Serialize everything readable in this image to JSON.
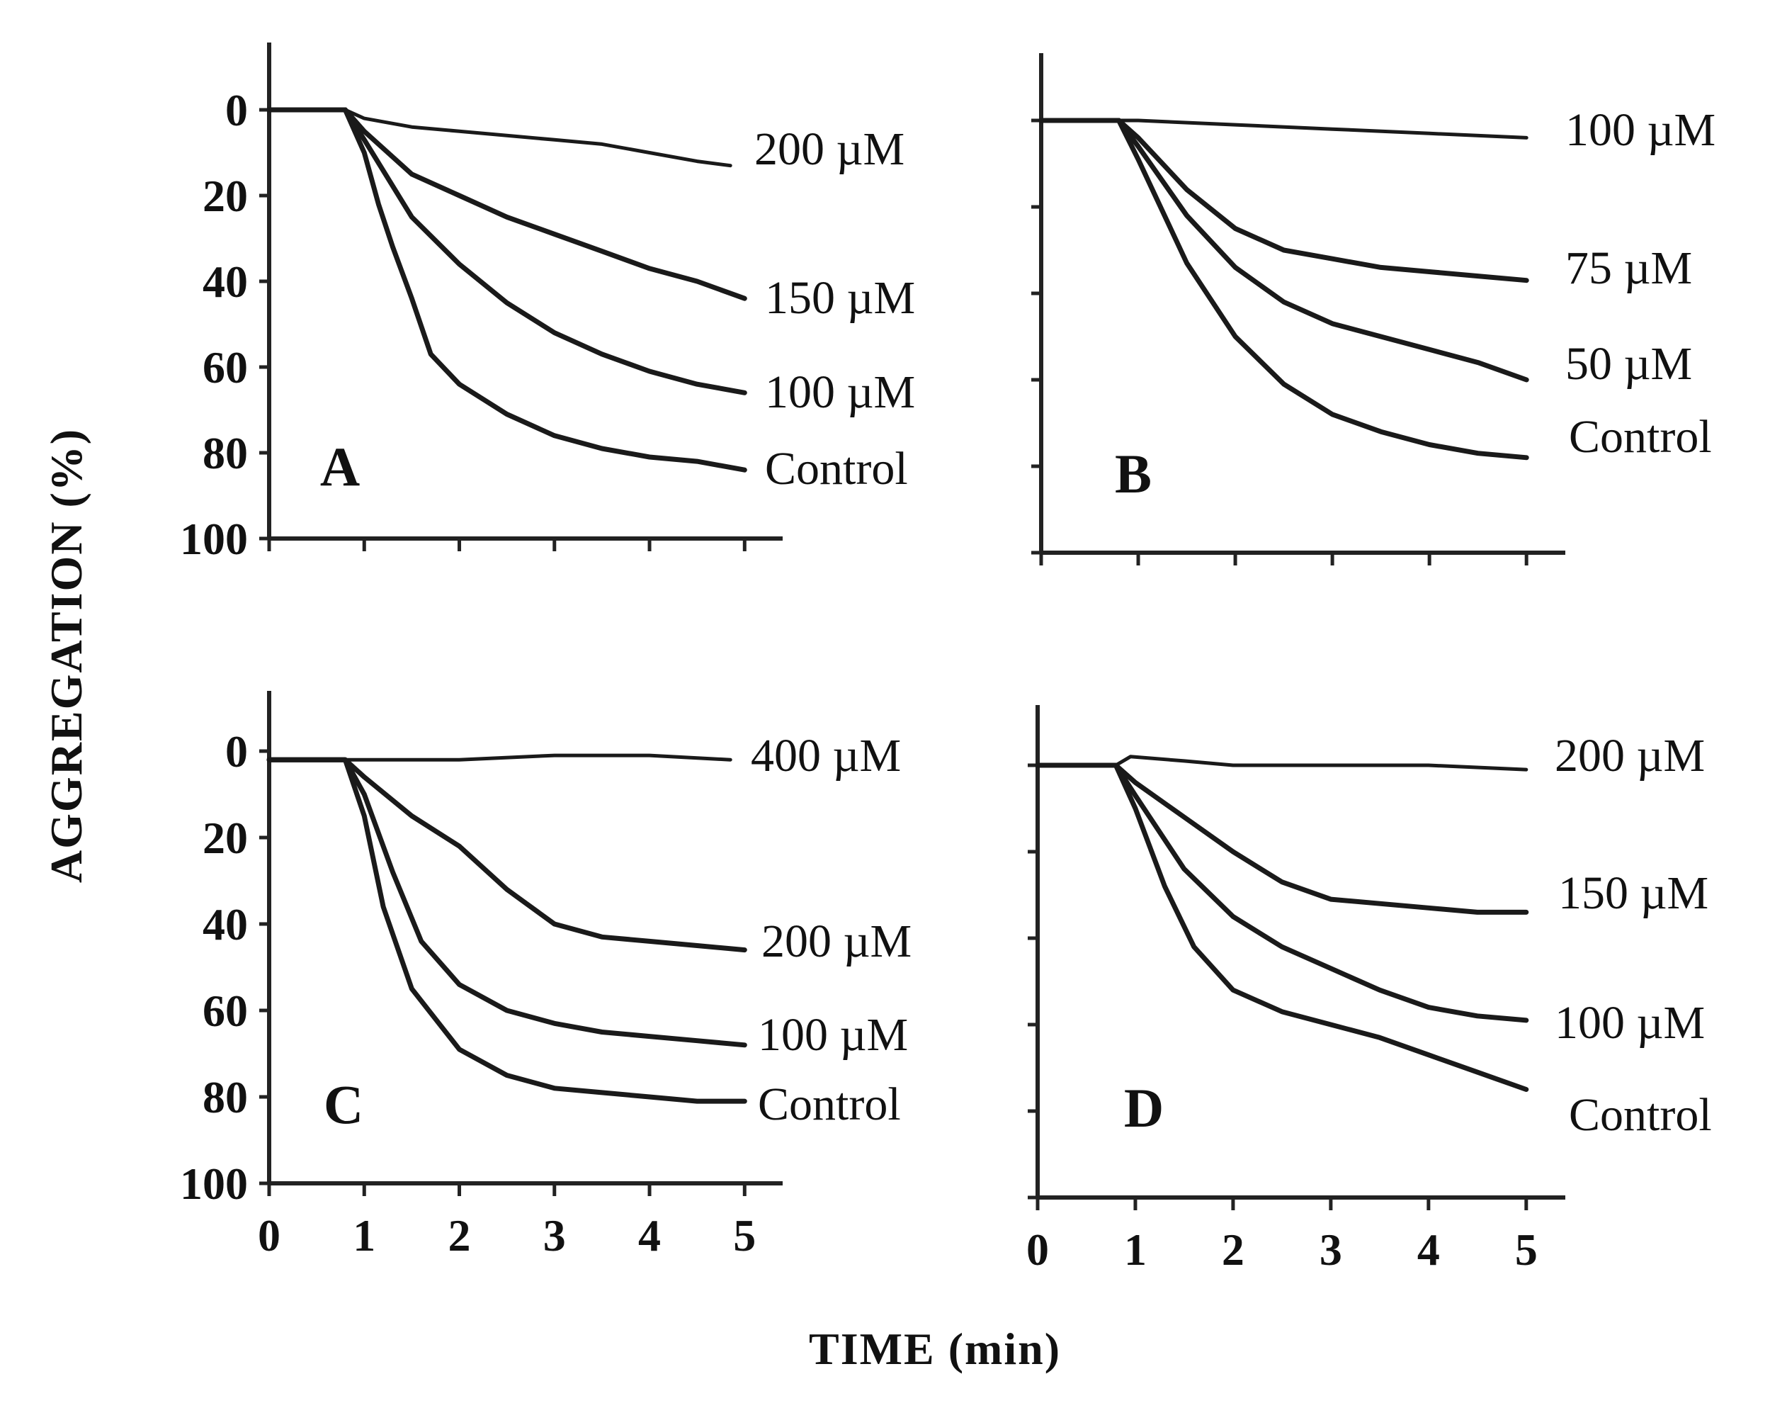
{
  "figure": {
    "ylabel": "AGGREGATION (%)",
    "xlabel": "TIME (min)"
  },
  "chart_data": [
    {
      "type": "line",
      "panel": "A",
      "xlim": [
        0,
        5.4
      ],
      "ylim": [
        0,
        100
      ],
      "y_inverted": true,
      "x_ticks": [
        0,
        1,
        2,
        3,
        4,
        5
      ],
      "x_tick_labels": [],
      "y_ticks": [
        0,
        20,
        40,
        60,
        80,
        100
      ],
      "y_tick_labels": [
        "0",
        "20",
        "40",
        "60",
        "80",
        "100"
      ],
      "series": [
        {
          "name": "200 µM",
          "x": [
            0,
            0.4,
            0.8,
            1.0,
            1.5,
            2.0,
            2.5,
            3.0,
            3.5,
            4.0,
            4.5,
            4.85
          ],
          "y": [
            0,
            0,
            0,
            2,
            4,
            5,
            6,
            7,
            8,
            10,
            12,
            13
          ]
        },
        {
          "name": "150 µM",
          "x": [
            0,
            0.4,
            0.8,
            1.0,
            1.5,
            2.0,
            2.5,
            3.0,
            3.5,
            4.0,
            4.5,
            5.0
          ],
          "y": [
            0,
            0,
            0,
            5,
            15,
            20,
            25,
            29,
            33,
            37,
            40,
            44
          ]
        },
        {
          "name": "100 µM",
          "x": [
            0,
            0.4,
            0.8,
            1.0,
            1.5,
            2.0,
            2.5,
            3.0,
            3.5,
            4.0,
            4.5,
            5.0
          ],
          "y": [
            0,
            0,
            0,
            7,
            25,
            36,
            45,
            52,
            57,
            61,
            64,
            66
          ]
        },
        {
          "name": "Control",
          "x": [
            0,
            0.4,
            0.8,
            1.0,
            1.15,
            1.3,
            1.5,
            1.7,
            2.0,
            2.5,
            3.0,
            3.5,
            4.0,
            4.5,
            5.0
          ],
          "y": [
            0,
            0,
            0,
            10,
            22,
            32,
            44,
            57,
            64,
            71,
            76,
            79,
            81,
            82,
            84
          ]
        }
      ]
    },
    {
      "type": "line",
      "panel": "B",
      "xlim": [
        0,
        5.4
      ],
      "ylim": [
        0,
        100
      ],
      "y_inverted": true,
      "x_ticks": [
        0,
        1,
        2,
        3,
        4,
        5
      ],
      "x_tick_labels": [],
      "y_ticks": [
        0,
        20,
        40,
        60,
        80,
        100
      ],
      "y_tick_labels": [],
      "series": [
        {
          "name": "100 µM",
          "x": [
            0,
            0.4,
            0.8,
            1.0,
            2.0,
            3.0,
            4.0,
            5.0
          ],
          "y": [
            0,
            0,
            0,
            0,
            1,
            2,
            3,
            4
          ]
        },
        {
          "name": "75 µM",
          "x": [
            0,
            0.4,
            0.8,
            1.0,
            1.5,
            2.0,
            2.5,
            3.0,
            3.5,
            4.0,
            4.5,
            5.0
          ],
          "y": [
            0,
            0,
            0,
            4,
            16,
            25,
            30,
            32,
            34,
            35,
            36,
            37
          ]
        },
        {
          "name": "50 µM",
          "x": [
            0,
            0.4,
            0.8,
            1.0,
            1.5,
            2.0,
            2.5,
            3.0,
            3.5,
            4.0,
            4.5,
            5.0
          ],
          "y": [
            0,
            0,
            0,
            6,
            22,
            34,
            42,
            47,
            50,
            53,
            56,
            60
          ]
        },
        {
          "name": "Control",
          "x": [
            0,
            0.4,
            0.8,
            1.0,
            1.5,
            2.0,
            2.5,
            3.0,
            3.5,
            4.0,
            4.5,
            5.0
          ],
          "y": [
            0,
            0,
            0,
            9,
            33,
            50,
            61,
            68,
            72,
            75,
            77,
            78
          ]
        }
      ]
    },
    {
      "type": "line",
      "panel": "C",
      "xlim": [
        0,
        5.4
      ],
      "ylim": [
        0,
        100
      ],
      "y_inverted": true,
      "x_ticks": [
        0,
        1,
        2,
        3,
        4,
        5
      ],
      "x_tick_labels": [
        "0",
        "1",
        "2",
        "3",
        "4",
        "5"
      ],
      "y_ticks": [
        0,
        20,
        40,
        60,
        80,
        100
      ],
      "y_tick_labels": [
        "0",
        "20",
        "40",
        "60",
        "80",
        "100"
      ],
      "series": [
        {
          "name": "400 µM",
          "x": [
            0,
            0.4,
            0.8,
            1.0,
            2.0,
            3.0,
            4.0,
            4.85
          ],
          "y": [
            2,
            2,
            2,
            2,
            2,
            1,
            1,
            2
          ]
        },
        {
          "name": "200 µM",
          "x": [
            0,
            0.4,
            0.8,
            1.0,
            1.5,
            2.0,
            2.5,
            3.0,
            3.5,
            4.0,
            4.5,
            5.0
          ],
          "y": [
            2,
            2,
            2,
            6,
            15,
            22,
            32,
            40,
            43,
            44,
            45,
            46
          ]
        },
        {
          "name": "100 µM",
          "x": [
            0,
            0.4,
            0.8,
            1.0,
            1.3,
            1.6,
            2.0,
            2.5,
            3.0,
            3.5,
            4.0,
            4.5,
            5.0
          ],
          "y": [
            2,
            2,
            2,
            10,
            28,
            44,
            54,
            60,
            63,
            65,
            66,
            67,
            68
          ]
        },
        {
          "name": "Control",
          "x": [
            0,
            0.4,
            0.8,
            1.0,
            1.2,
            1.5,
            2.0,
            2.5,
            3.0,
            3.5,
            4.0,
            4.5,
            5.0
          ],
          "y": [
            2,
            2,
            2,
            15,
            36,
            55,
            69,
            75,
            78,
            79,
            80,
            81,
            81
          ]
        }
      ]
    },
    {
      "type": "line",
      "panel": "D",
      "xlim": [
        0,
        5.4
      ],
      "ylim": [
        0,
        100
      ],
      "y_inverted": true,
      "x_ticks": [
        0,
        1,
        2,
        3,
        4,
        5
      ],
      "x_tick_labels": [
        "0",
        "1",
        "2",
        "3",
        "4",
        "5"
      ],
      "y_ticks": [
        0,
        20,
        40,
        60,
        80,
        100
      ],
      "y_tick_labels": [],
      "series": [
        {
          "name": "200 µM",
          "x": [
            0,
            0.4,
            0.8,
            0.95,
            1.5,
            2.0,
            3.0,
            4.0,
            5.0
          ],
          "y": [
            0,
            0,
            0,
            -2,
            -1,
            0,
            0,
            0,
            1
          ]
        },
        {
          "name": "150 µM",
          "x": [
            0,
            0.4,
            0.8,
            1.0,
            1.5,
            2.0,
            2.5,
            3.0,
            3.5,
            4.0,
            4.5,
            5.0
          ],
          "y": [
            0,
            0,
            0,
            4,
            12,
            20,
            27,
            31,
            32,
            33,
            34,
            34
          ]
        },
        {
          "name": "100 µM",
          "x": [
            0,
            0.4,
            0.8,
            1.0,
            1.5,
            2.0,
            2.5,
            3.0,
            3.5,
            4.0,
            4.5,
            5.0
          ],
          "y": [
            0,
            0,
            0,
            7,
            24,
            35,
            42,
            47,
            52,
            56,
            58,
            59
          ]
        },
        {
          "name": "Control",
          "x": [
            0,
            0.4,
            0.8,
            1.0,
            1.3,
            1.6,
            2.0,
            2.5,
            3.0,
            3.5,
            4.0,
            4.5,
            5.0
          ],
          "y": [
            0,
            0,
            0,
            10,
            28,
            42,
            52,
            57,
            60,
            63,
            67,
            71,
            75
          ]
        }
      ]
    }
  ]
}
